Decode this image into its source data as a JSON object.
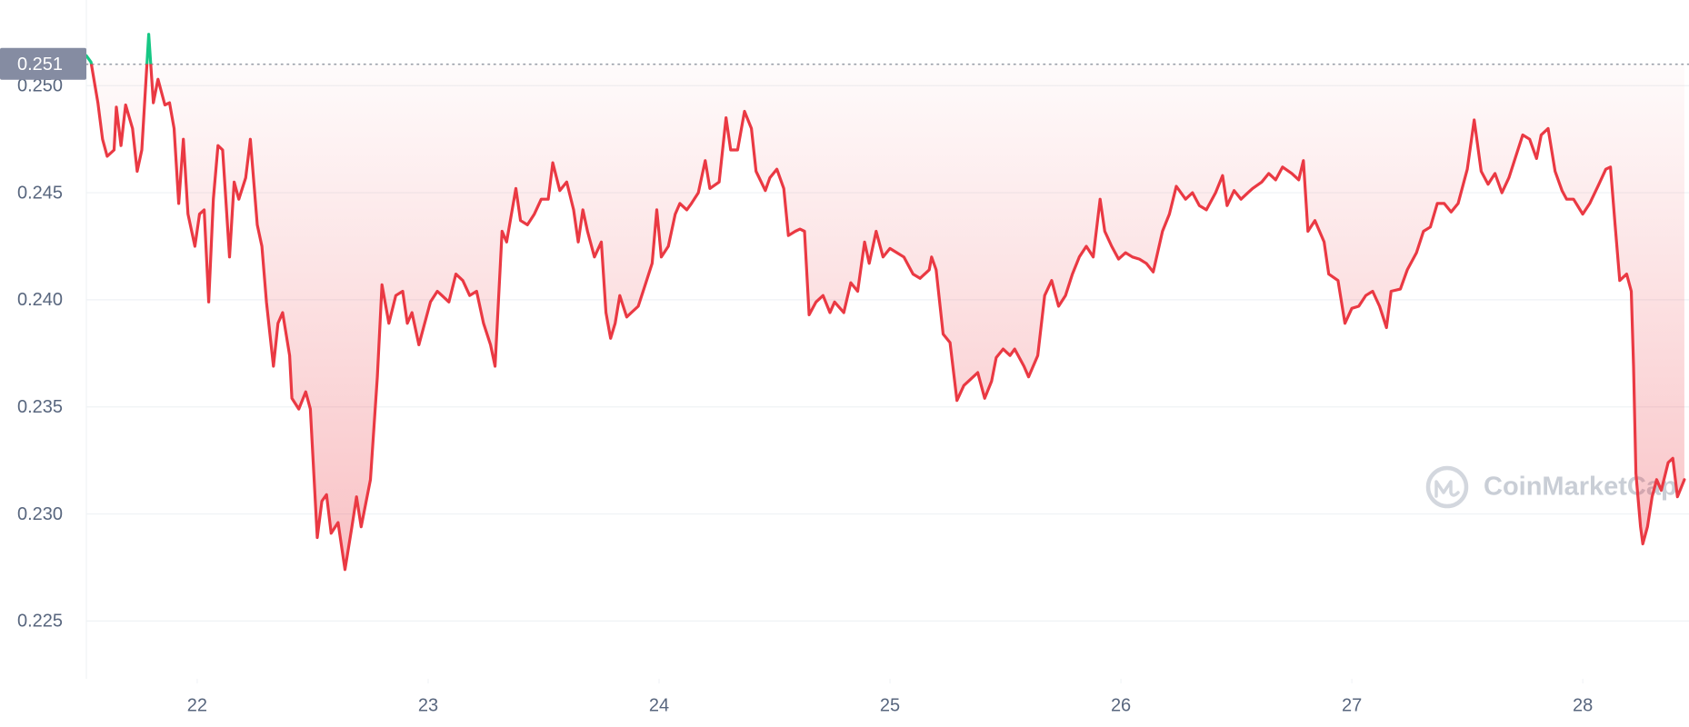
{
  "chart_data": {
    "type": "line",
    "watermark": "CoinMarketCap",
    "x": [
      21.52,
      21.54,
      21.57,
      21.59,
      21.61,
      21.64,
      21.65,
      21.67,
      21.69,
      21.72,
      21.74,
      21.76,
      21.79,
      21.81,
      21.83,
      21.86,
      21.88,
      21.9,
      21.92,
      21.94,
      21.96,
      21.99,
      22.01,
      22.03,
      22.05,
      22.07,
      22.09,
      22.11,
      22.14,
      22.16,
      22.18,
      22.21,
      22.23,
      22.26,
      22.28,
      22.3,
      22.33,
      22.35,
      22.37,
      22.4,
      22.41,
      22.44,
      22.47,
      22.49,
      22.52,
      22.54,
      22.56,
      22.58,
      22.61,
      22.64,
      22.67,
      22.69,
      22.71,
      22.75,
      22.78,
      22.8,
      22.83,
      22.86,
      22.89,
      22.91,
      22.93,
      22.96,
      22.98,
      23.01,
      23.04,
      23.06,
      23.09,
      23.12,
      23.15,
      23.18,
      23.21,
      23.24,
      23.27,
      23.29,
      23.32,
      23.34,
      23.38,
      23.4,
      23.43,
      23.46,
      23.49,
      23.52,
      23.54,
      23.57,
      23.6,
      23.63,
      23.65,
      23.67,
      23.69,
      23.72,
      23.75,
      23.77,
      23.79,
      23.81,
      23.83,
      23.86,
      23.88,
      23.91,
      23.94,
      23.97,
      23.99,
      24.01,
      24.04,
      24.07,
      24.09,
      24.12,
      24.14,
      24.17,
      24.2,
      24.22,
      24.26,
      24.29,
      24.31,
      24.34,
      24.37,
      24.4,
      24.42,
      24.46,
      24.48,
      24.51,
      24.54,
      24.56,
      24.59,
      24.61,
      24.63,
      24.65,
      24.68,
      24.71,
      24.74,
      24.76,
      24.8,
      24.83,
      24.86,
      24.89,
      24.91,
      24.94,
      24.97,
      25.0,
      25.03,
      25.06,
      25.1,
      25.13,
      25.17,
      25.18,
      25.2,
      25.23,
      25.26,
      25.29,
      25.32,
      25.35,
      25.38,
      25.41,
      25.44,
      25.46,
      25.49,
      25.52,
      25.54,
      25.58,
      25.6,
      25.64,
      25.67,
      25.7,
      25.73,
      25.76,
      25.79,
      25.82,
      25.85,
      25.88,
      25.91,
      25.93,
      25.96,
      25.99,
      26.02,
      26.05,
      26.08,
      26.11,
      26.14,
      26.18,
      26.21,
      26.24,
      26.28,
      26.31,
      26.34,
      26.37,
      26.41,
      26.44,
      26.46,
      26.49,
      26.52,
      26.55,
      26.57,
      26.61,
      26.64,
      26.67,
      26.7,
      26.74,
      26.77,
      26.79,
      26.81,
      26.84,
      26.88,
      26.9,
      26.94,
      26.97,
      27.0,
      27.03,
      27.06,
      27.09,
      27.12,
      27.15,
      27.17,
      27.21,
      27.24,
      27.28,
      27.31,
      27.34,
      27.37,
      27.4,
      27.43,
      27.46,
      27.5,
      27.53,
      27.56,
      27.59,
      27.62,
      27.65,
      27.68,
      27.71,
      27.74,
      27.77,
      27.8,
      27.82,
      27.85,
      27.88,
      27.91,
      27.93,
      27.96,
      28.0,
      28.03,
      28.07,
      28.1,
      28.12,
      28.14,
      28.16,
      28.19,
      28.21,
      28.22,
      28.23,
      28.25,
      28.26,
      28.28,
      28.3,
      28.32,
      28.34,
      28.37,
      28.39,
      28.41,
      28.44
    ],
    "values": [
      0.2514,
      0.2511,
      0.2492,
      0.2475,
      0.2467,
      0.247,
      0.249,
      0.2472,
      0.2491,
      0.248,
      0.246,
      0.247,
      0.2524,
      0.2492,
      0.2503,
      0.2491,
      0.2492,
      0.248,
      0.2445,
      0.2475,
      0.244,
      0.2425,
      0.244,
      0.2442,
      0.2399,
      0.2447,
      0.2472,
      0.247,
      0.242,
      0.2455,
      0.2447,
      0.2457,
      0.2475,
      0.2435,
      0.2425,
      0.2399,
      0.2369,
      0.2389,
      0.2394,
      0.2374,
      0.2354,
      0.2349,
      0.2357,
      0.2349,
      0.2289,
      0.2306,
      0.2309,
      0.2291,
      0.2296,
      0.2274,
      0.2294,
      0.2308,
      0.2294,
      0.2316,
      0.2364,
      0.2407,
      0.2389,
      0.2402,
      0.2404,
      0.2389,
      0.2394,
      0.2379,
      0.2387,
      0.2399,
      0.2404,
      0.2402,
      0.2399,
      0.2412,
      0.2409,
      0.2402,
      0.2404,
      0.2389,
      0.2379,
      0.2369,
      0.2432,
      0.2427,
      0.2452,
      0.2437,
      0.2435,
      0.244,
      0.2447,
      0.2447,
      0.2464,
      0.2451,
      0.2455,
      0.2442,
      0.2427,
      0.2442,
      0.2432,
      0.242,
      0.2427,
      0.2394,
      0.2382,
      0.2389,
      0.2402,
      0.2392,
      0.2394,
      0.2397,
      0.2407,
      0.2417,
      0.2442,
      0.242,
      0.2425,
      0.244,
      0.2445,
      0.2442,
      0.2445,
      0.245,
      0.2465,
      0.2452,
      0.2455,
      0.2485,
      0.247,
      0.247,
      0.2488,
      0.248,
      0.246,
      0.2451,
      0.2457,
      0.2461,
      0.2452,
      0.243,
      0.2432,
      0.2433,
      0.2432,
      0.2393,
      0.2399,
      0.2402,
      0.2394,
      0.2399,
      0.2394,
      0.2408,
      0.2404,
      0.2427,
      0.2417,
      0.2432,
      0.242,
      0.2424,
      0.2422,
      0.242,
      0.2412,
      0.241,
      0.2414,
      0.242,
      0.2414,
      0.2384,
      0.238,
      0.2353,
      0.236,
      0.2363,
      0.2366,
      0.2354,
      0.2362,
      0.2373,
      0.2377,
      0.2374,
      0.2377,
      0.2369,
      0.2364,
      0.2374,
      0.2402,
      0.2409,
      0.2397,
      0.2402,
      0.2412,
      0.242,
      0.2425,
      0.242,
      0.2447,
      0.2432,
      0.2425,
      0.2419,
      0.2422,
      0.242,
      0.2419,
      0.2417,
      0.2413,
      0.2432,
      0.244,
      0.2453,
      0.2447,
      0.245,
      0.2444,
      0.2442,
      0.245,
      0.2458,
      0.2444,
      0.2451,
      0.2447,
      0.245,
      0.2452,
      0.2455,
      0.2459,
      0.2456,
      0.2462,
      0.2459,
      0.2456,
      0.2465,
      0.2432,
      0.2437,
      0.2427,
      0.2412,
      0.2409,
      0.2389,
      0.2396,
      0.2397,
      0.2402,
      0.2404,
      0.2397,
      0.2387,
      0.2404,
      0.2405,
      0.2414,
      0.2422,
      0.2432,
      0.2434,
      0.2445,
      0.2445,
      0.2441,
      0.2445,
      0.2461,
      0.2484,
      0.246,
      0.2454,
      0.2459,
      0.245,
      0.2457,
      0.2467,
      0.2477,
      0.2475,
      0.2466,
      0.2477,
      0.248,
      0.246,
      0.2451,
      0.2447,
      0.2447,
      0.244,
      0.2445,
      0.2454,
      0.2461,
      0.2462,
      0.2435,
      0.2409,
      0.2412,
      0.2404,
      0.2369,
      0.2319,
      0.2294,
      0.2286,
      0.2294,
      0.2308,
      0.2316,
      0.2311,
      0.2324,
      0.2326,
      0.2308,
      0.2316
    ],
    "color": "#ea3943",
    "above_color": "#16c784",
    "reference_line": 0.251,
    "xlim": [
      21.52,
      28.46
    ],
    "xticks": [
      22,
      23,
      24,
      25,
      26,
      27,
      28
    ],
    "ylim": [
      0.2223,
      0.254
    ],
    "yticks": [
      0.225,
      {
        "value": 0.23,
        "label": "0.230"
      },
      0.235,
      {
        "value": 0.24,
        "label": "0.240"
      },
      0.245,
      {
        "value": 0.25,
        "label": "0.250"
      }
    ],
    "grid": true
  }
}
